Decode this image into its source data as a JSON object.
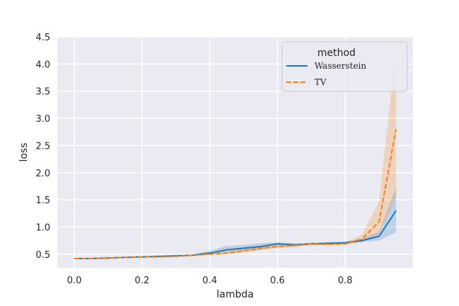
{
  "chart_data": {
    "type": "line",
    "xlabel": "lambda",
    "ylabel": "loss",
    "xlim": [
      -0.05,
      1.0
    ],
    "ylim": [
      0.25,
      4.5
    ],
    "xticks": [
      0.0,
      0.2,
      0.4,
      0.6,
      0.8
    ],
    "xtick_labels": [
      "0.0",
      "0.2",
      "0.4",
      "0.6",
      "0.8"
    ],
    "yticks": [
      0.5,
      1.0,
      1.5,
      2.0,
      2.5,
      3.0,
      3.5,
      4.0,
      4.5
    ],
    "ytick_labels": [
      "0.5",
      "1.0",
      "1.5",
      "2.0",
      "2.5",
      "3.0",
      "3.5",
      "4.0",
      "4.5"
    ],
    "grid": true,
    "background": "#eaeaf2",
    "legend": {
      "title": "method",
      "placement": "top-right"
    },
    "x": [
      0.0,
      0.05,
      0.1,
      0.15,
      0.2,
      0.25,
      0.3,
      0.35,
      0.4,
      0.45,
      0.5,
      0.55,
      0.6,
      0.65,
      0.7,
      0.75,
      0.8,
      0.85,
      0.9,
      0.95
    ],
    "series": [
      {
        "name": "Wasserstein",
        "color": "#1f77b4",
        "dash": "solid",
        "values": [
          0.42,
          0.42,
          0.43,
          0.44,
          0.45,
          0.46,
          0.47,
          0.48,
          0.52,
          0.58,
          0.61,
          0.64,
          0.69,
          0.67,
          0.69,
          0.7,
          0.71,
          0.75,
          0.83,
          1.3
        ],
        "lower": [
          0.41,
          0.41,
          0.42,
          0.43,
          0.44,
          0.45,
          0.46,
          0.47,
          0.49,
          0.53,
          0.55,
          0.58,
          0.63,
          0.64,
          0.67,
          0.68,
          0.69,
          0.72,
          0.75,
          0.9
        ],
        "upper": [
          0.43,
          0.43,
          0.44,
          0.45,
          0.46,
          0.47,
          0.48,
          0.5,
          0.56,
          0.65,
          0.67,
          0.7,
          0.72,
          0.7,
          0.71,
          0.72,
          0.73,
          0.78,
          0.92,
          1.73
        ]
      },
      {
        "name": "TV",
        "color": "#ff7f0e",
        "dash": "dashed",
        "values": [
          0.42,
          0.42,
          0.43,
          0.44,
          0.45,
          0.45,
          0.46,
          0.48,
          0.5,
          0.52,
          0.56,
          0.61,
          0.64,
          0.66,
          0.69,
          0.68,
          0.69,
          0.78,
          1.1,
          2.8
        ],
        "lower": [
          0.41,
          0.41,
          0.42,
          0.43,
          0.44,
          0.44,
          0.45,
          0.47,
          0.48,
          0.5,
          0.53,
          0.58,
          0.61,
          0.64,
          0.67,
          0.66,
          0.67,
          0.73,
          0.88,
          1.55
        ],
        "upper": [
          0.43,
          0.43,
          0.44,
          0.45,
          0.46,
          0.46,
          0.47,
          0.49,
          0.52,
          0.55,
          0.6,
          0.65,
          0.68,
          0.68,
          0.71,
          0.7,
          0.72,
          0.86,
          1.48,
          4.28
        ]
      }
    ]
  }
}
